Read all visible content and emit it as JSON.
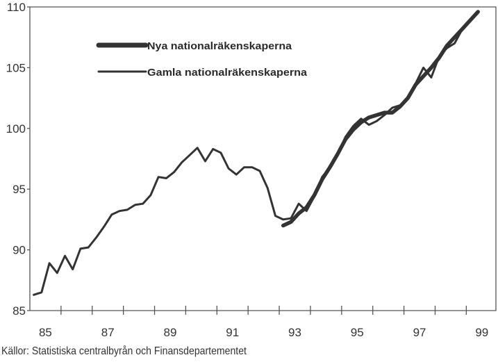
{
  "chart_data": {
    "type": "line",
    "title": "",
    "xlabel": "",
    "ylabel": "",
    "xlim": [
      85,
      99.95
    ],
    "ylim": [
      85,
      110
    ],
    "x_ticks": [
      "85",
      "87",
      "89",
      "91",
      "93",
      "95",
      "97",
      "99"
    ],
    "y_ticks": [
      "85",
      "90",
      "95",
      "100",
      "105",
      "110"
    ],
    "legend_position": "top-left",
    "series": [
      {
        "name": "Nya nationalräkenskaperna",
        "style": "thick",
        "color": "#333333",
        "x": [
          93.125,
          93.375,
          93.625,
          93.875,
          94.125,
          94.375,
          94.625,
          94.875,
          95.125,
          95.375,
          95.625,
          95.875,
          96.125,
          96.375,
          96.625,
          96.875,
          97.125,
          97.375,
          97.625,
          97.875,
          98.125,
          98.375,
          98.625,
          98.875,
          99.125,
          99.375
        ],
        "y": [
          92.0,
          92.3,
          93.0,
          93.5,
          94.5,
          95.8,
          96.8,
          97.9,
          99.1,
          99.9,
          100.5,
          100.9,
          101.1,
          101.3,
          101.3,
          101.8,
          102.5,
          103.6,
          104.3,
          105.0,
          105.8,
          106.8,
          107.5,
          108.2,
          108.9,
          109.6
        ]
      },
      {
        "name": "Gamla nationalräkenskaperna",
        "style": "thin",
        "color": "#333333",
        "x": [
          85.125,
          85.375,
          85.625,
          85.875,
          86.125,
          86.375,
          86.625,
          86.875,
          87.125,
          87.375,
          87.625,
          87.875,
          88.125,
          88.375,
          88.625,
          88.875,
          89.125,
          89.375,
          89.625,
          89.875,
          90.125,
          90.375,
          90.625,
          90.875,
          91.125,
          91.375,
          91.625,
          91.875,
          92.125,
          92.375,
          92.625,
          92.875,
          93.125,
          93.375,
          93.625,
          93.875,
          94.125,
          94.375,
          94.625,
          94.875,
          95.125,
          95.375,
          95.625,
          95.875,
          96.125,
          96.375,
          96.625,
          96.875,
          97.125,
          97.375,
          97.625,
          97.875,
          98.125,
          98.375,
          98.625,
          98.875
        ],
        "y": [
          86.3,
          86.5,
          88.9,
          88.1,
          89.5,
          88.4,
          90.1,
          90.2,
          91.0,
          91.9,
          92.9,
          93.2,
          93.3,
          93.7,
          93.8,
          94.5,
          96.0,
          95.9,
          96.4,
          97.2,
          97.8,
          98.4,
          97.3,
          98.3,
          98.0,
          96.7,
          96.2,
          96.8,
          96.8,
          96.5,
          95.1,
          92.8,
          92.5,
          92.6,
          93.8,
          93.2,
          94.4,
          96.0,
          96.8,
          97.9,
          99.3,
          100.2,
          100.8,
          100.3,
          100.6,
          101.1,
          101.7,
          101.9,
          102.5,
          103.7,
          105.0,
          104.2,
          105.9,
          106.6,
          107.0,
          108.2
        ]
      }
    ]
  },
  "source": "Källor: Statistiska centralbyrån och Finansdepartementet"
}
